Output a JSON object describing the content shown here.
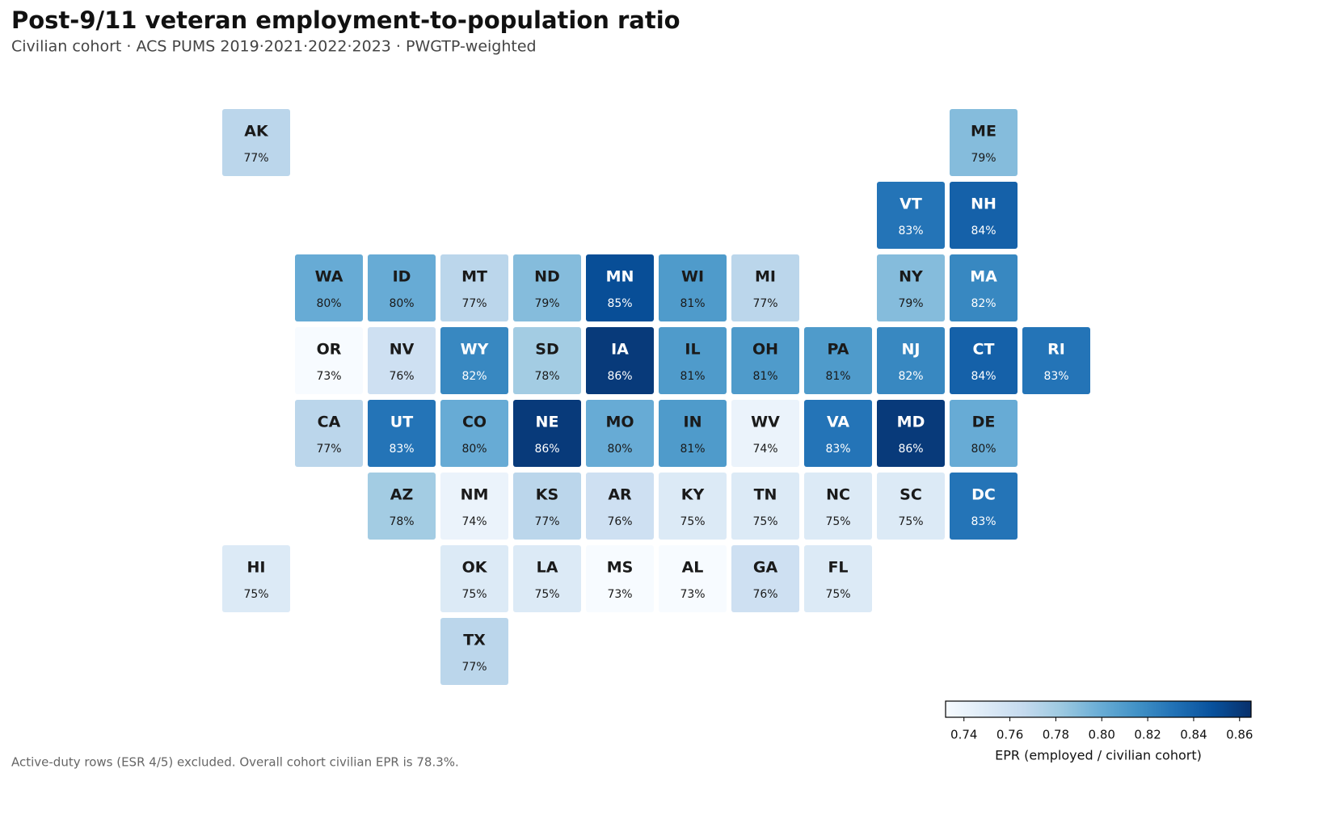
{
  "chart_data": {
    "type": "tilemap",
    "title": "Post-9/11 veteran employment-to-population ratio",
    "subtitle": "Civilian cohort · ACS PUMS 2019·2021·2022·2023 · PWGTP-weighted",
    "footnote": "Active-duty rows (ESR 4/5) excluded. Overall cohort civilian EPR is 78.3%.",
    "colorbar_label": "EPR (employed / civilian cohort)",
    "colormap": [
      "#f7fbff",
      "#deebf7",
      "#c6dbef",
      "#9ecae1",
      "#6baed6",
      "#4292c6",
      "#2171b5",
      "#08519c",
      "#08306b"
    ],
    "clim": [
      0.732,
      0.865
    ],
    "cticks": [
      0.74,
      0.76,
      0.78,
      {
        "value": 0.8,
        "label": "0.80"
      },
      0.82,
      0.84,
      0.86
    ],
    "categories": [
      "AK",
      "ME",
      "VT",
      "NH",
      "WA",
      "ID",
      "MT",
      "ND",
      "MN",
      "WI",
      "MI",
      "NY",
      "MA",
      "OR",
      "NV",
      "WY",
      "SD",
      "IA",
      "IL",
      "OH",
      "PA",
      "NJ",
      "CT",
      "RI",
      "CA",
      "UT",
      "CO",
      "NE",
      "MO",
      "IN",
      "WV",
      "VA",
      "MD",
      "DE",
      "AZ",
      "NM",
      "KS",
      "AR",
      "KY",
      "TN",
      "NC",
      "SC",
      "DC",
      "HI",
      "OK",
      "LA",
      "MS",
      "AL",
      "GA",
      "FL",
      "TX"
    ],
    "values": [
      0.77,
      0.79,
      0.83,
      0.84,
      0.8,
      0.8,
      0.77,
      0.79,
      0.85,
      0.81,
      0.77,
      0.79,
      0.82,
      0.73,
      0.76,
      0.82,
      0.78,
      0.86,
      0.81,
      0.81,
      0.81,
      0.82,
      0.84,
      0.83,
      0.77,
      0.83,
      0.8,
      0.86,
      0.8,
      0.81,
      0.74,
      0.83,
      0.86,
      0.8,
      0.78,
      0.74,
      0.77,
      0.76,
      0.75,
      0.75,
      0.75,
      0.75,
      0.83,
      0.75,
      0.75,
      0.75,
      0.73,
      0.73,
      0.76,
      0.75,
      0.77
    ],
    "value_labels": [
      "77%",
      "79%",
      "83%",
      "84%",
      "80%",
      "80%",
      "77%",
      "79%",
      "85%",
      "81%",
      "77%",
      "79%",
      "82%",
      "73%",
      "76%",
      "82%",
      "78%",
      "86%",
      "81%",
      "81%",
      "81%",
      "82%",
      "84%",
      "83%",
      "77%",
      "83%",
      "80%",
      "86%",
      "80%",
      "81%",
      "74%",
      "83%",
      "86%",
      "80%",
      "78%",
      "74%",
      "77%",
      "76%",
      "75%",
      "75%",
      "75%",
      "75%",
      "83%",
      "75%",
      "75%",
      "75%",
      "73%",
      "73%",
      "76%",
      "75%",
      "77%"
    ]
  }
}
